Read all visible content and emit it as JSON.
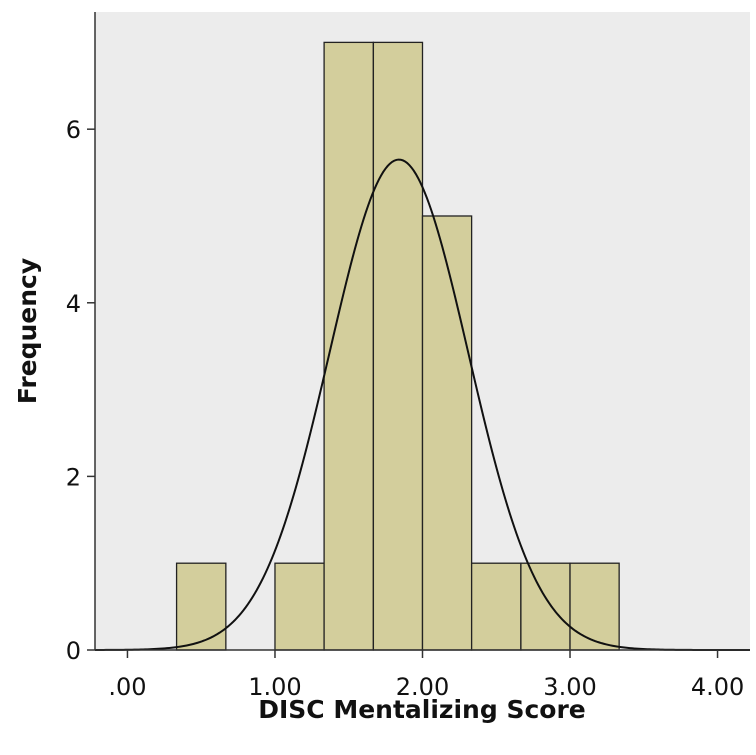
{
  "chart_data": {
    "type": "bar",
    "subtype": "histogram",
    "xlabel": "DISC Mentalizing Score",
    "ylabel": "Frequency",
    "xlim": [
      -0.22,
      4.22
    ],
    "ylim": [
      0,
      7.35
    ],
    "x_ticks": [
      {
        "value": 0,
        "label": ".00"
      },
      {
        "value": 1,
        "label": "1.00"
      },
      {
        "value": 2,
        "label": "2.00"
      },
      {
        "value": 3,
        "label": "3.00"
      },
      {
        "value": 4,
        "label": "4.00"
      }
    ],
    "y_ticks": [
      {
        "value": 0,
        "label": "0"
      },
      {
        "value": 2,
        "label": "2"
      },
      {
        "value": 4,
        "label": "4"
      },
      {
        "value": 6,
        "label": "6"
      }
    ],
    "bins": [
      {
        "start": 0.333,
        "end": 0.667,
        "count": 1
      },
      {
        "start": 0.667,
        "end": 1.0,
        "count": 0
      },
      {
        "start": 1.0,
        "end": 1.333,
        "count": 1
      },
      {
        "start": 1.333,
        "end": 1.667,
        "count": 7
      },
      {
        "start": 1.667,
        "end": 2.0,
        "count": 7
      },
      {
        "start": 2.0,
        "end": 2.333,
        "count": 5
      },
      {
        "start": 2.333,
        "end": 2.667,
        "count": 1
      },
      {
        "start": 2.667,
        "end": 3.0,
        "count": 1
      },
      {
        "start": 3.0,
        "end": 3.333,
        "count": 1
      }
    ],
    "normal_curve": {
      "mean": 1.84,
      "sd": 0.47,
      "peak_frequency": 5.65
    },
    "grid": false,
    "legend": "none",
    "colors": {
      "bar_fill": "#d3ce9c",
      "bar_stroke": "#222222",
      "plot_background": "#ececec",
      "curve": "#111111",
      "axis": "#333333"
    }
  }
}
